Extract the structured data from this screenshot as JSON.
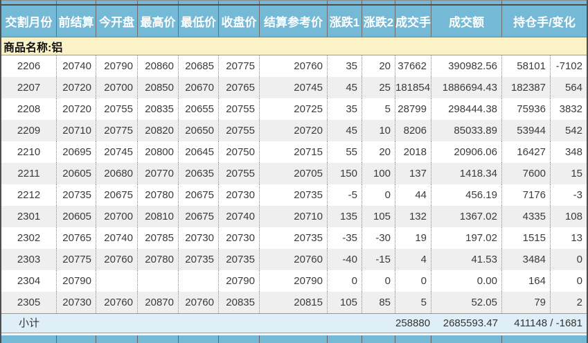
{
  "colors": {
    "header_bg": "#74B9D6",
    "group_bg": "#FBF2C7",
    "subtotal_bg": "#DFEFF8",
    "alt_row_bg": "#EFEFEF",
    "header_text": "#FFFFFF"
  },
  "table": {
    "headers": [
      "交割月份",
      "前结算",
      "今开盘",
      "最高价",
      "最低价",
      "收盘价",
      "结算参考价",
      "涨跌1",
      "涨跌2",
      "成交手",
      "成交额",
      "持仓手/变化"
    ],
    "group_label": "商品名称:铝",
    "rows": [
      [
        "2206",
        "20740",
        "20790",
        "20860",
        "20685",
        "20775",
        "20760",
        "35",
        "20",
        "37662",
        "390982.56",
        "58101",
        "-7102"
      ],
      [
        "2207",
        "20720",
        "20700",
        "20850",
        "20670",
        "20765",
        "20745",
        "45",
        "25",
        "181854",
        "1886694.43",
        "182387",
        "564"
      ],
      [
        "2208",
        "20720",
        "20755",
        "20835",
        "20655",
        "20755",
        "20725",
        "35",
        "5",
        "28799",
        "298444.38",
        "75936",
        "3832"
      ],
      [
        "2209",
        "20710",
        "20775",
        "20820",
        "20650",
        "20755",
        "20720",
        "45",
        "10",
        "8206",
        "85033.89",
        "53944",
        "542"
      ],
      [
        "2210",
        "20695",
        "20745",
        "20800",
        "20645",
        "20750",
        "20715",
        "55",
        "20",
        "2018",
        "20906.06",
        "16427",
        "348"
      ],
      [
        "2211",
        "20605",
        "20680",
        "20770",
        "20635",
        "20755",
        "20705",
        "150",
        "100",
        "137",
        "1418.34",
        "7600",
        "15"
      ],
      [
        "2212",
        "20735",
        "20675",
        "20780",
        "20675",
        "20730",
        "20735",
        "-5",
        "0",
        "44",
        "456.19",
        "7176",
        "-3"
      ],
      [
        "2301",
        "20605",
        "20700",
        "20810",
        "20675",
        "20740",
        "20710",
        "135",
        "105",
        "132",
        "1367.02",
        "4335",
        "108"
      ],
      [
        "2302",
        "20765",
        "20740",
        "20785",
        "20730",
        "20730",
        "20735",
        "-35",
        "-30",
        "19",
        "197.02",
        "1515",
        "13"
      ],
      [
        "2303",
        "20775",
        "20760",
        "20780",
        "20735",
        "20735",
        "20760",
        "-40",
        "-15",
        "4",
        "41.53",
        "3484",
        "0"
      ],
      [
        "2304",
        "20790",
        "",
        "",
        "",
        "20790",
        "20790",
        "0",
        "0",
        "0",
        "0.00",
        "164",
        "0"
      ],
      [
        "2305",
        "20730",
        "20760",
        "20870",
        "20760",
        "20835",
        "20815",
        "105",
        "85",
        "5",
        "52.05",
        "79",
        "2"
      ]
    ],
    "subtotal": {
      "label": "小计",
      "volume": "258880",
      "turnover": "2685593.47",
      "open_interest_change": "411148 / -1681"
    }
  }
}
